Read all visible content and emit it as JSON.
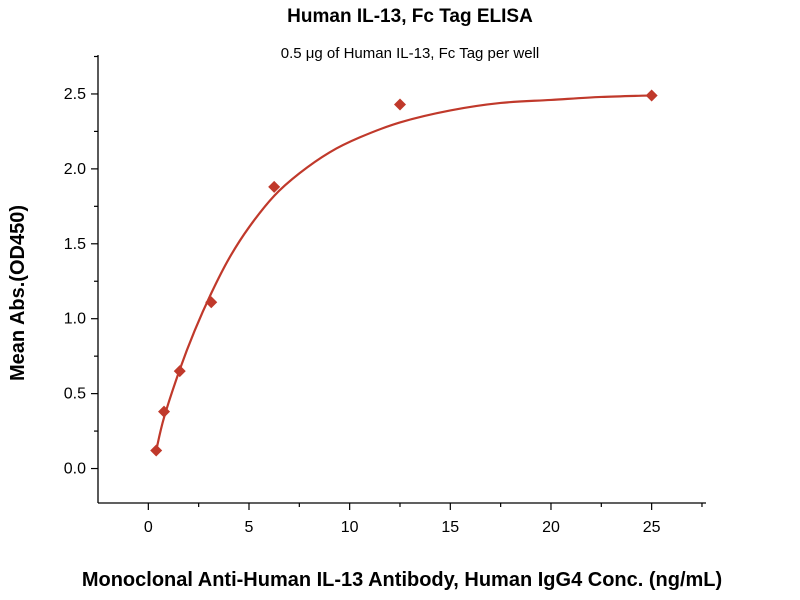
{
  "chart_data": {
    "type": "scatter",
    "title": "Human IL-13, Fc Tag ELISA",
    "subtitle": "0.5 μg of Human IL-13, Fc Tag per well",
    "xlabel": "Monoclonal Anti-Human IL-13 Antibody, Human IgG4 Conc. (ng/mL)",
    "ylabel": "Mean Abs.(OD450)",
    "xlim": [
      -2.5,
      27.7
    ],
    "ylim": [
      -0.23,
      2.76
    ],
    "xticks": [
      0,
      5,
      10,
      15,
      20,
      25
    ],
    "yticks": [
      0.0,
      0.5,
      1.0,
      1.5,
      2.0,
      2.5
    ],
    "grid": false,
    "colors": {
      "series": "#c0392b",
      "curve": "#c0392b"
    },
    "series": [
      {
        "marker": "diamond",
        "x": [
          0.39,
          0.78,
          1.56,
          3.125,
          6.25,
          12.5,
          25
        ],
        "y": [
          0.12,
          0.38,
          0.65,
          1.11,
          1.88,
          2.43,
          2.49
        ]
      }
    ],
    "fit_curve": {
      "type": "saturation",
      "x": [
        0.39,
        0.78,
        1.56,
        2.3,
        3.125,
        4.0,
        5.0,
        6.25,
        7.5,
        9.0,
        10.5,
        12.5,
        15.0,
        17.5,
        20.0,
        22.5,
        25.0
      ],
      "y": [
        0.12,
        0.34,
        0.66,
        0.92,
        1.17,
        1.4,
        1.61,
        1.82,
        1.97,
        2.11,
        2.21,
        2.31,
        2.39,
        2.44,
        2.46,
        2.48,
        2.49
      ]
    }
  }
}
